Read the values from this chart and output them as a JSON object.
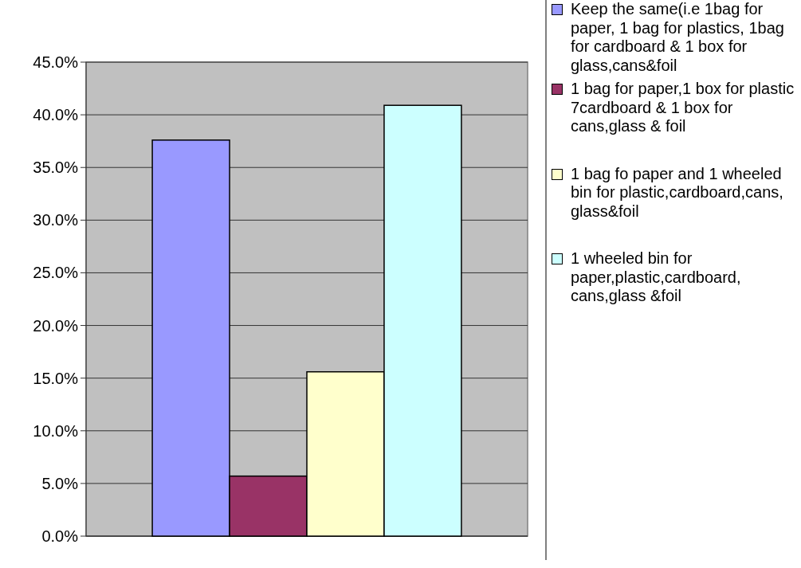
{
  "chart_data": {
    "type": "bar",
    "categories": [
      null
    ],
    "series": [
      {
        "name": "Keep the same(i.e 1bag for paper, 1 bag for plastics, 1bag for cardboard & 1 box for glass,cans&foil",
        "color": "#9999ff",
        "values": [
          37.6
        ]
      },
      {
        "name": "1 bag for paper,1 box for plastic 7cardboard & 1 box for cans,glass & foil",
        "color": "#993366",
        "values": [
          5.7
        ]
      },
      {
        "name": "1 bag fo paper and 1 wheeled bin for plastic,cardboard,cans, glass&foil",
        "color": "#ffffcc",
        "values": [
          15.6
        ]
      },
      {
        "name": "1 wheeled bin for paper,plastic,cardboard, cans,glass &foil",
        "color": "#ccffff",
        "values": [
          40.9
        ]
      }
    ],
    "ylim": [
      0,
      45
    ],
    "yticks": [
      {
        "value": 0,
        "label": "0.0%"
      },
      {
        "value": 5,
        "label": "5.0%"
      },
      {
        "value": 10,
        "label": "10.0%"
      },
      {
        "value": 15,
        "label": "15.0%"
      },
      {
        "value": 20,
        "label": "20.0%"
      },
      {
        "value": 25,
        "label": "25.0%"
      },
      {
        "value": 30,
        "label": "30.0%"
      },
      {
        "value": 35,
        "label": "35.0%"
      },
      {
        "value": 40,
        "label": "40.0%"
      },
      {
        "value": 45,
        "label": "45.0%"
      }
    ],
    "grid": "y",
    "legend": "right"
  }
}
